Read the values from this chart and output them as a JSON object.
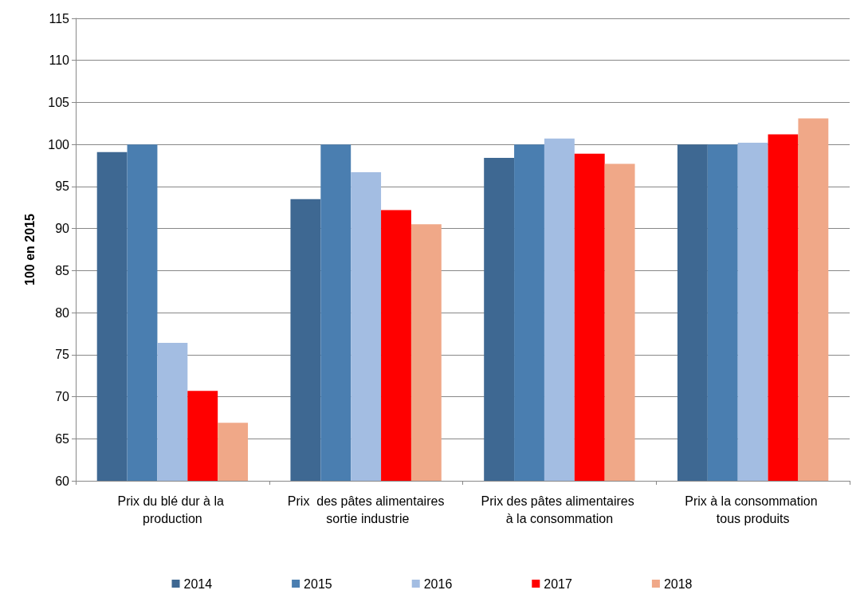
{
  "chart_data": {
    "type": "bar",
    "ylabel": "100 en 2015",
    "categories": [
      "Prix du blé dur à la production",
      "Prix  des pâtes alimentaires sortie industrie",
      "Prix des pâtes alimentaires à la consommation",
      "Prix à la consommation tous produits"
    ],
    "series": [
      {
        "name": "2014",
        "color": "#3e6892",
        "values": [
          99.1,
          93.5,
          98.4,
          100
        ]
      },
      {
        "name": "2015",
        "color": "#4a7eb0",
        "values": [
          100,
          100,
          100,
          100
        ]
      },
      {
        "name": "2016",
        "color": "#a3bde2",
        "values": [
          76.4,
          96.7,
          100.7,
          100.2
        ]
      },
      {
        "name": "2017",
        "color": "#ff0000",
        "values": [
          70.7,
          92.2,
          98.9,
          101.2
        ]
      },
      {
        "name": "2018",
        "color": "#f0a888",
        "values": [
          66.9,
          90.5,
          97.7,
          103.1
        ]
      }
    ],
    "ylim": [
      60,
      115
    ],
    "yticks": [
      60,
      65,
      70,
      75,
      80,
      85,
      90,
      95,
      100,
      105,
      110,
      115
    ],
    "grid": "y",
    "legend": "bottom"
  }
}
